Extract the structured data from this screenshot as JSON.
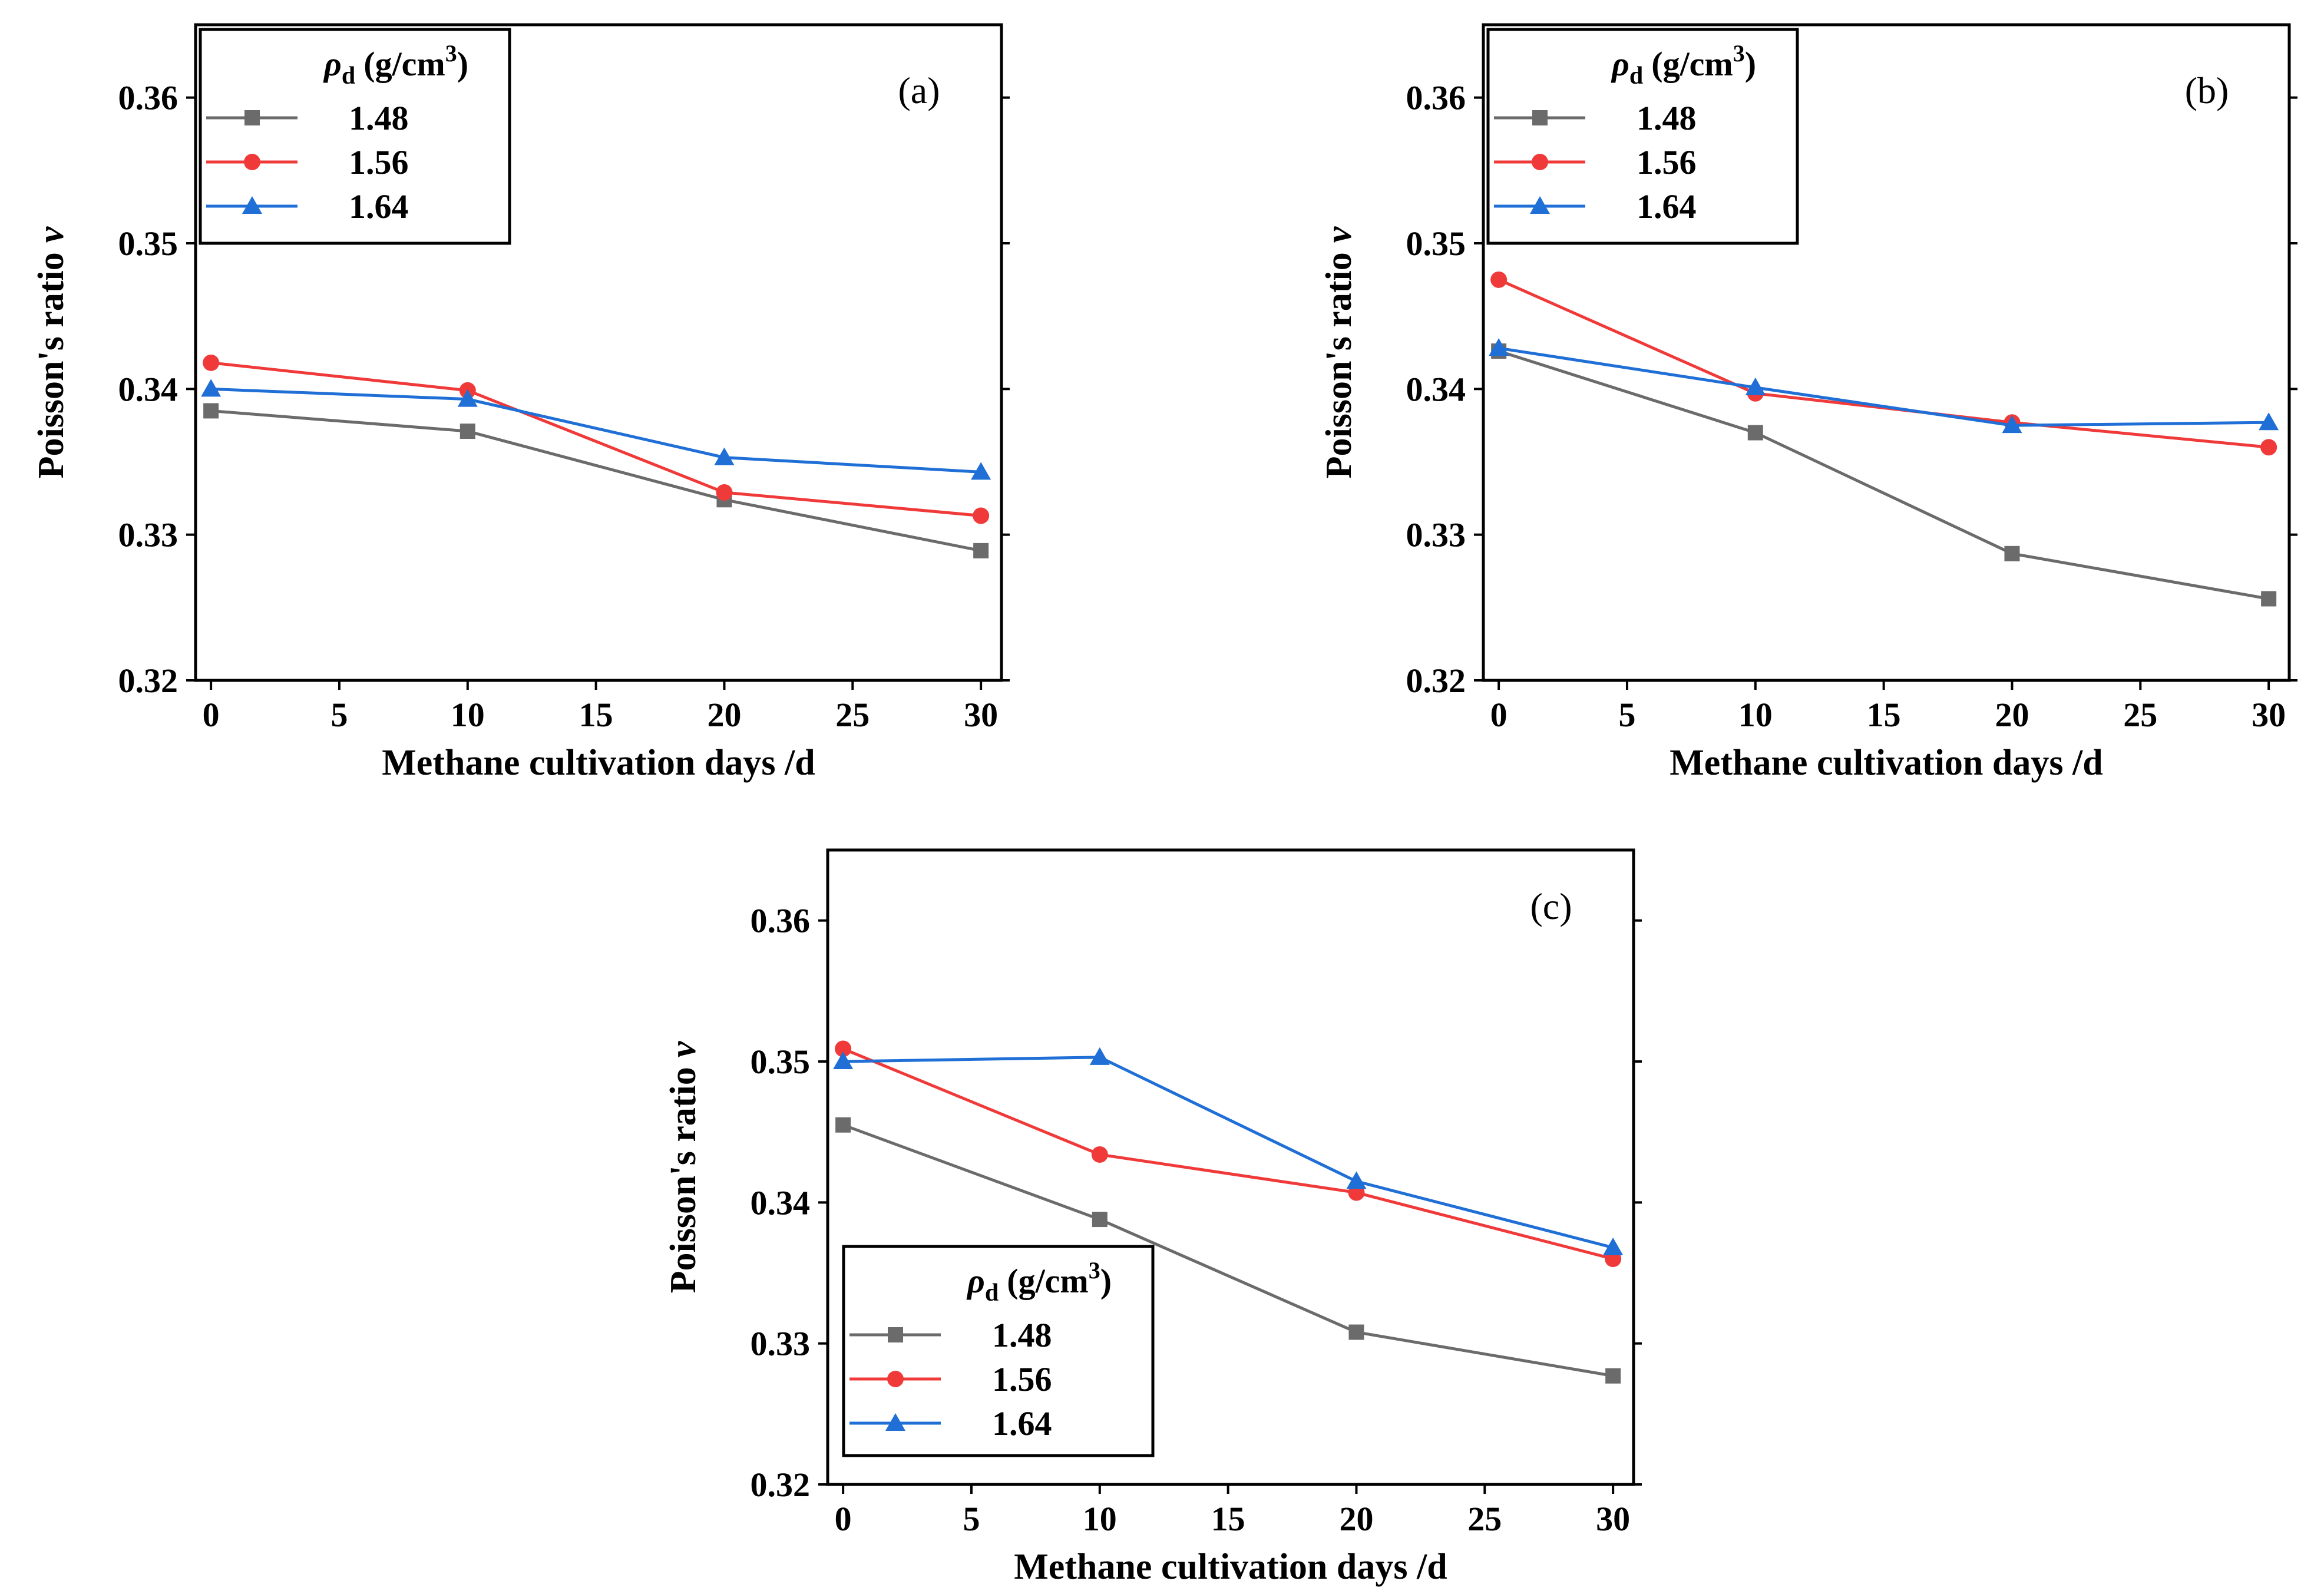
{
  "series_styles": [
    {
      "name": "1.48",
      "color": "#6b6b6b",
      "marker": "square"
    },
    {
      "name": "1.56",
      "color": "#f03a3a",
      "marker": "circle"
    },
    {
      "name": "1.64",
      "color": "#1f6fd6",
      "marker": "triangle"
    }
  ],
  "chart_data": [
    {
      "type": "line",
      "panel_label": "(a)",
      "xlabel": "Methane cultivation days /d",
      "ylabel": "Poisson's ratio",
      "ylabel_symbol": "v",
      "x": [
        0,
        10,
        20,
        30
      ],
      "xlim": [
        -0.6,
        30.8
      ],
      "ylim": [
        0.32,
        0.365
      ],
      "xticks": [
        0,
        5,
        10,
        15,
        20,
        25,
        30
      ],
      "yticks": [
        0.32,
        0.33,
        0.34,
        0.35,
        0.36
      ],
      "ytick_labels": [
        "0.32",
        "0.33",
        "0.34",
        "0.35",
        "0.36"
      ],
      "legend": {
        "title_symbol": "ρ",
        "title_subscript": "d",
        "title_unit": "(g/cm",
        "title_sup": "3",
        "title_close": ")",
        "position": "top-left"
      },
      "series": [
        {
          "name": "1.48",
          "values": [
            0.3385,
            0.3371,
            0.3324,
            0.3289
          ]
        },
        {
          "name": "1.56",
          "values": [
            0.3418,
            0.3399,
            0.3329,
            0.3313
          ]
        },
        {
          "name": "1.64",
          "values": [
            0.34,
            0.3393,
            0.3353,
            0.3343
          ]
        }
      ]
    },
    {
      "type": "line",
      "panel_label": "(b)",
      "xlabel": "Methane cultivation days /d",
      "ylabel": "Poisson's ratio",
      "ylabel_symbol": "v",
      "x": [
        0,
        10,
        20,
        30
      ],
      "xlim": [
        -0.6,
        30.8
      ],
      "ylim": [
        0.32,
        0.365
      ],
      "xticks": [
        0,
        5,
        10,
        15,
        20,
        25,
        30
      ],
      "yticks": [
        0.32,
        0.33,
        0.34,
        0.35,
        0.36
      ],
      "ytick_labels": [
        "0.32",
        "0.33",
        "0.34",
        "0.35",
        "0.36"
      ],
      "legend": {
        "title_symbol": "ρ",
        "title_subscript": "d",
        "title_unit": "(g/cm",
        "title_sup": "3",
        "title_close": ")",
        "position": "top-left"
      },
      "series": [
        {
          "name": "1.48",
          "values": [
            0.3426,
            0.337,
            0.3287,
            0.3256
          ]
        },
        {
          "name": "1.56",
          "values": [
            0.3475,
            0.3397,
            0.3377,
            0.336
          ]
        },
        {
          "name": "1.64",
          "values": [
            0.3428,
            0.3401,
            0.3375,
            0.3377
          ]
        }
      ]
    },
    {
      "type": "line",
      "panel_label": "(c)",
      "xlabel": "Methane cultivation days /d",
      "ylabel": "Poisson's ratio",
      "ylabel_symbol": "v",
      "x": [
        0,
        10,
        20,
        30
      ],
      "xlim": [
        -0.6,
        30.8
      ],
      "ylim": [
        0.32,
        0.365
      ],
      "xticks": [
        0,
        5,
        10,
        15,
        20,
        25,
        30
      ],
      "yticks": [
        0.32,
        0.33,
        0.34,
        0.35,
        0.36
      ],
      "ytick_labels": [
        "0.32",
        "0.33",
        "0.34",
        "0.35",
        "0.36"
      ],
      "legend": {
        "title_symbol": "ρ",
        "title_subscript": "d",
        "title_unit": "(g/cm",
        "title_sup": "3",
        "title_close": ")",
        "position": "bottom-left"
      },
      "series": [
        {
          "name": "1.48",
          "values": [
            0.3455,
            0.3388,
            0.3308,
            0.3277
          ]
        },
        {
          "name": "1.56",
          "values": [
            0.3509,
            0.3434,
            0.3407,
            0.336
          ]
        },
        {
          "name": "1.64",
          "values": [
            0.35,
            0.3503,
            0.3415,
            0.3368
          ]
        }
      ]
    }
  ]
}
